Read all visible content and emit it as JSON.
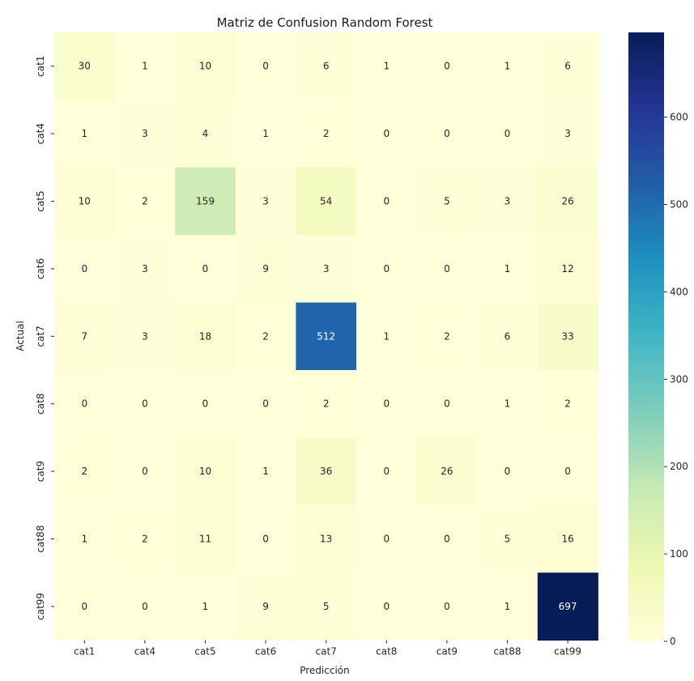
{
  "chart_data": {
    "type": "heatmap",
    "title": "Matriz de Confusion Random Forest",
    "xlabel": "Predicción",
    "ylabel": "Actual",
    "x_categories": [
      "cat1",
      "cat4",
      "cat5",
      "cat6",
      "cat7",
      "cat8",
      "cat9",
      "cat88",
      "cat99"
    ],
    "y_categories": [
      "cat1",
      "cat4",
      "cat5",
      "cat6",
      "cat7",
      "cat8",
      "cat9",
      "cat88",
      "cat99"
    ],
    "matrix": [
      [
        30,
        1,
        10,
        0,
        6,
        1,
        0,
        1,
        6
      ],
      [
        1,
        3,
        4,
        1,
        2,
        0,
        0,
        0,
        3
      ],
      [
        10,
        2,
        159,
        3,
        54,
        0,
        5,
        3,
        26
      ],
      [
        0,
        3,
        0,
        9,
        3,
        0,
        0,
        1,
        12
      ],
      [
        7,
        3,
        18,
        2,
        512,
        1,
        2,
        6,
        33
      ],
      [
        0,
        0,
        0,
        0,
        2,
        0,
        0,
        1,
        2
      ],
      [
        2,
        0,
        10,
        1,
        36,
        0,
        26,
        0,
        0
      ],
      [
        1,
        2,
        11,
        0,
        13,
        0,
        0,
        5,
        16
      ],
      [
        0,
        0,
        1,
        9,
        5,
        0,
        0,
        1,
        697
      ]
    ],
    "colorbar": {
      "colormap": "YlGnBu",
      "range": [
        0,
        697
      ],
      "ticks": [
        0,
        100,
        200,
        300,
        400,
        500,
        600
      ]
    },
    "colormap_stops": [
      "#ffffd9",
      "#edf8b1",
      "#c7e9b4",
      "#7fcdbb",
      "#41b6c4",
      "#1d91c0",
      "#225ea8",
      "#253494",
      "#081d58"
    ],
    "annotation_dark_color": "#262626",
    "annotation_light_color": "#ffffff"
  }
}
